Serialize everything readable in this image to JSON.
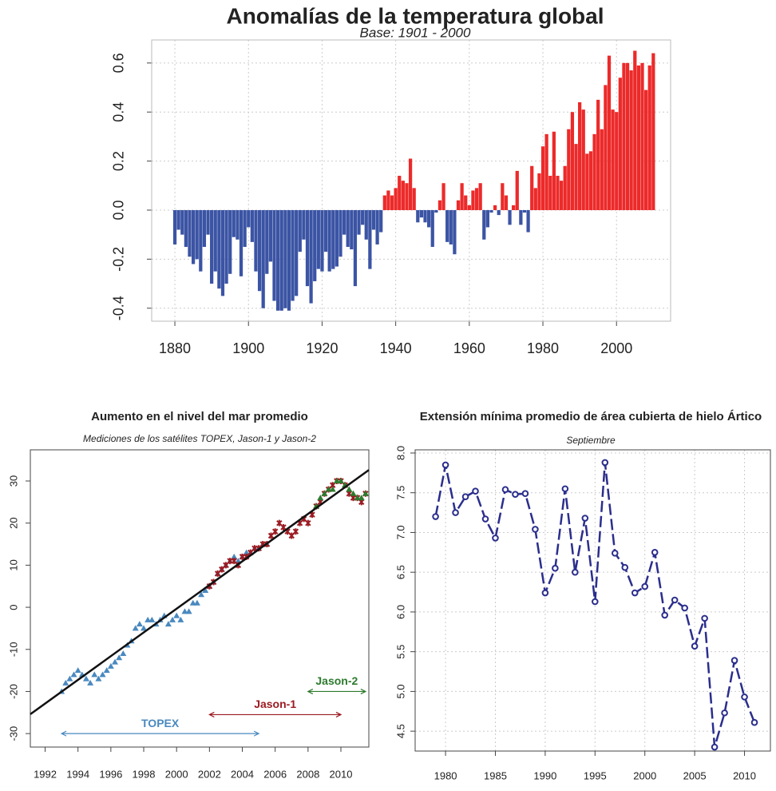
{
  "chart_data": [
    {
      "type": "bar",
      "title": "Anomalías de la temperatura global",
      "subtitle": "Base: 1901 - 2000",
      "x": [
        1880,
        1881,
        1882,
        1883,
        1884,
        1885,
        1886,
        1887,
        1888,
        1889,
        1890,
        1891,
        1892,
        1893,
        1894,
        1895,
        1896,
        1897,
        1898,
        1899,
        1900,
        1901,
        1902,
        1903,
        1904,
        1905,
        1906,
        1907,
        1908,
        1909,
        1910,
        1911,
        1912,
        1913,
        1914,
        1915,
        1916,
        1917,
        1918,
        1919,
        1920,
        1921,
        1922,
        1923,
        1924,
        1925,
        1926,
        1927,
        1928,
        1929,
        1930,
        1931,
        1932,
        1933,
        1934,
        1935,
        1936,
        1937,
        1938,
        1939,
        1940,
        1941,
        1942,
        1943,
        1944,
        1945,
        1946,
        1947,
        1948,
        1949,
        1950,
        1951,
        1952,
        1953,
        1954,
        1955,
        1956,
        1957,
        1958,
        1959,
        1960,
        1961,
        1962,
        1963,
        1964,
        1965,
        1966,
        1967,
        1968,
        1969,
        1970,
        1971,
        1972,
        1973,
        1974,
        1975,
        1976,
        1977,
        1978,
        1979,
        1980,
        1981,
        1982,
        1983,
        1984,
        1985,
        1986,
        1987,
        1988,
        1989,
        1990,
        1991,
        1992,
        1993,
        1994,
        1995,
        1996,
        1997,
        1998,
        1999,
        2000,
        2001,
        2002,
        2003,
        2004,
        2005,
        2006,
        2007,
        2008,
        2009,
        2010
      ],
      "values": [
        -0.14,
        -0.08,
        -0.1,
        -0.15,
        -0.19,
        -0.22,
        -0.2,
        -0.25,
        -0.15,
        -0.1,
        -0.3,
        -0.25,
        -0.32,
        -0.35,
        -0.3,
        -0.26,
        -0.11,
        -0.12,
        -0.27,
        -0.15,
        -0.07,
        -0.13,
        -0.25,
        -0.33,
        -0.4,
        -0.26,
        -0.21,
        -0.37,
        -0.41,
        -0.41,
        -0.4,
        -0.41,
        -0.37,
        -0.35,
        -0.17,
        -0.12,
        -0.31,
        -0.38,
        -0.29,
        -0.24,
        -0.25,
        -0.17,
        -0.25,
        -0.24,
        -0.23,
        -0.19,
        -0.1,
        -0.15,
        -0.16,
        -0.31,
        -0.1,
        -0.06,
        -0.12,
        -0.24,
        -0.08,
        -0.14,
        -0.09,
        0.06,
        0.08,
        0.06,
        0.09,
        0.14,
        0.12,
        0.11,
        0.21,
        0.09,
        -0.05,
        -0.03,
        -0.05,
        -0.07,
        -0.15,
        -0.01,
        0.04,
        0.11,
        -0.13,
        -0.14,
        -0.18,
        0.04,
        0.11,
        0.06,
        0.02,
        0.08,
        0.09,
        0.11,
        -0.12,
        -0.07,
        -0.01,
        0.02,
        -0.02,
        0.11,
        0.06,
        -0.06,
        0.02,
        0.16,
        -0.06,
        -0.01,
        -0.09,
        0.18,
        0.09,
        0.15,
        0.26,
        0.31,
        0.14,
        0.32,
        0.14,
        0.12,
        0.18,
        0.33,
        0.4,
        0.27,
        0.44,
        0.41,
        0.23,
        0.24,
        0.31,
        0.45,
        0.33,
        0.51,
        0.63,
        0.41,
        0.4,
        0.54,
        0.6,
        0.6,
        0.57,
        0.65,
        0.59,
        0.6,
        0.49,
        0.59,
        0.64
      ],
      "color_positive": "#ec2a2a",
      "color_negative": "#3b54a4",
      "xlim": [
        1873.7,
        2014.7
      ],
      "xticks": [
        1880,
        1900,
        1920,
        1940,
        1960,
        1980,
        2000
      ],
      "ylim": [
        -0.453,
        0.694
      ],
      "yticks": [
        -0.4,
        -0.2,
        {
          "value": 0,
          "label": "0.0"
        },
        0.2,
        0.4,
        0.6
      ],
      "grid": true
    },
    {
      "type": "scatter",
      "title": "Aumento en el nivel del mar promedio",
      "subtitle": "Mediciones de los satélites TOPEX, Jason-1 y Jason-2",
      "series": [
        {
          "name": "TOPEX",
          "color": "#4a89bf",
          "marker": "triangle",
          "x": [
            1993.0,
            1993.25,
            1993.5,
            1993.75,
            1994.0,
            1994.25,
            1994.5,
            1994.75,
            1995.0,
            1995.25,
            1995.5,
            1995.75,
            1996.0,
            1996.25,
            1996.5,
            1996.75,
            1997.0,
            1997.25,
            1997.5,
            1997.75,
            1998.0,
            1998.25,
            1998.5,
            1998.75,
            1999.0,
            1999.25,
            1999.5,
            1999.75,
            2000.0,
            2000.25,
            2000.5,
            2000.75,
            2001.0,
            2001.25,
            2001.5,
            2001.75,
            2002.0,
            2002.25,
            2002.5,
            2002.75,
            2003.0,
            2003.25,
            2003.5,
            2003.75,
            2004.0,
            2004.25,
            2004.5,
            2004.75,
            2005.0,
            2005.25,
            2005.5
          ],
          "values": [
            -20,
            -18,
            -17,
            -16,
            -15,
            -16,
            -17,
            -18,
            -16,
            -17,
            -16,
            -15,
            -14,
            -13,
            -12,
            -11,
            -9,
            -8,
            -5,
            -4,
            -5,
            -3,
            -3,
            -4,
            -3,
            -2,
            -4,
            -3,
            -2,
            -3,
            -1,
            -1,
            1,
            1,
            3,
            4,
            5,
            6,
            8,
            9,
            10,
            11,
            12,
            11,
            12,
            13,
            13,
            14,
            14,
            15,
            15
          ]
        },
        {
          "name": "Jason-1",
          "color": "#9b1b22",
          "marker": "cross",
          "x": [
            2002.0,
            2002.25,
            2002.5,
            2002.75,
            2003.0,
            2003.25,
            2003.5,
            2003.75,
            2004.0,
            2004.25,
            2004.5,
            2004.75,
            2005.0,
            2005.25,
            2005.5,
            2005.75,
            2006.0,
            2006.25,
            2006.5,
            2006.75,
            2007.0,
            2007.25,
            2007.5,
            2007.75,
            2008.0,
            2008.25,
            2008.5,
            2008.75,
            2009.0,
            2009.25,
            2009.5,
            2009.75,
            2010.0,
            2010.25,
            2010.5,
            2010.75,
            2011.0,
            2011.25,
            2011.5
          ],
          "values": [
            5,
            6,
            8,
            9,
            10,
            11,
            11,
            10,
            12,
            12,
            13,
            14,
            14,
            15,
            15,
            17,
            18,
            20,
            19,
            18,
            17,
            18,
            20,
            21,
            20,
            22,
            24,
            25,
            27,
            28,
            29,
            30,
            30,
            29,
            27,
            26,
            26,
            25,
            27
          ]
        },
        {
          "name": "Jason-2",
          "color": "#2e7a2e",
          "marker": "triangle",
          "x": [
            2008.5,
            2008.75,
            2009.0,
            2009.25,
            2009.5,
            2009.75,
            2010.0,
            2010.25,
            2010.5,
            2010.75,
            2011.0,
            2011.25,
            2011.5
          ],
          "values": [
            24,
            26,
            27,
            28,
            28,
            30,
            30,
            29,
            28,
            27,
            26,
            26,
            27
          ]
        }
      ],
      "trend_line": {
        "x": [
          1991.1,
          2011.7
        ],
        "values": [
          -25.4,
          32.6
        ],
        "color": "#111111"
      },
      "annotations": [
        {
          "text": "TOPEX",
          "x": [
            1993,
            2005
          ],
          "y": -30,
          "color": "#4a89bf"
        },
        {
          "text": "Jason-1",
          "x": [
            2002,
            2010
          ],
          "y": -25.5,
          "color": "#9b1b22"
        },
        {
          "text": "Jason-2",
          "x": [
            2008,
            2011.5
          ],
          "y": -20,
          "color": "#2e7a2e"
        }
      ],
      "xlim": [
        1991.1,
        2011.7
      ],
      "xticks": [
        1992,
        1994,
        1996,
        1998,
        2000,
        2002,
        2004,
        2006,
        2008,
        2010
      ],
      "ylim": [
        -33.2,
        37.4
      ],
      "yticks": [
        -30,
        -20,
        -10,
        0,
        10,
        20,
        30
      ],
      "grid": false
    },
    {
      "type": "line",
      "title": "Extensión mínima promedio de área cubierta de hielo Ártico",
      "subtitle": "Septiembre",
      "x": [
        1979,
        1980,
        1981,
        1982,
        1983,
        1984,
        1985,
        1986,
        1987,
        1988,
        1989,
        1990,
        1991,
        1992,
        1993,
        1994,
        1995,
        1996,
        1997,
        1998,
        1999,
        2000,
        2001,
        2002,
        2003,
        2004,
        2005,
        2006,
        2007,
        2008,
        2009,
        2010,
        2011
      ],
      "values": [
        7.2,
        7.85,
        7.25,
        7.45,
        7.52,
        7.17,
        6.93,
        7.54,
        7.48,
        7.49,
        7.04,
        6.24,
        6.55,
        7.55,
        6.5,
        7.18,
        6.13,
        7.88,
        6.74,
        6.56,
        6.24,
        6.32,
        6.75,
        5.96,
        6.15,
        6.05,
        5.57,
        5.92,
        4.3,
        4.73,
        5.39,
        4.93,
        4.61
      ],
      "color": "#2b2e8c",
      "xlim": [
        1976.95,
        2012.6
      ],
      "xticks": [
        1980,
        1985,
        1990,
        1995,
        2000,
        2005,
        2010
      ],
      "ylim": [
        4.25,
        8.04
      ],
      "yticks": [
        4.5,
        {
          "value": 5,
          "label": "5.0"
        },
        5.5,
        {
          "value": 6,
          "label": "6.0"
        },
        6.5,
        {
          "value": 7,
          "label": "7.0"
        },
        7.5,
        {
          "value": 8,
          "label": "8.0"
        }
      ],
      "grid": true
    }
  ]
}
